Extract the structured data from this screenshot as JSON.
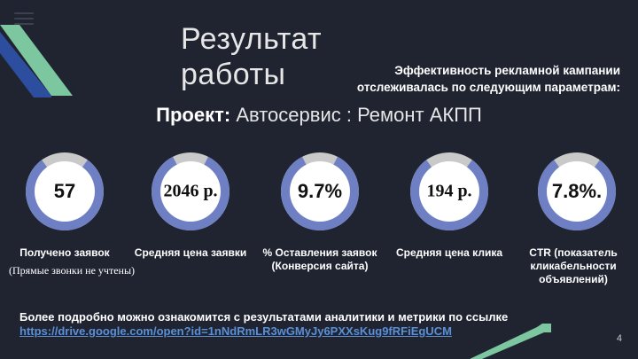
{
  "slide": {
    "title": "Результат работы",
    "subtitle_line1": "Эффективность рекламной кампании",
    "subtitle_line2": "отслеживалась по следующим параметрам:",
    "project_label": "Проект:",
    "project_value": "Автосервис : Ремонт АКПП",
    "page_number": "4",
    "colors": {
      "background": "#1f2430",
      "ring_blue": "#6f7fc3",
      "ring_gray": "#c9c9c9",
      "accent_green": "#7cc6a0",
      "accent_blue": "#2d4e9e",
      "link": "#5b8fd6"
    }
  },
  "metrics": [
    {
      "value": "57",
      "label": "Получено заявок",
      "note": "(Прямые звонки не учтены)",
      "fill": 0.8
    },
    {
      "value": "2046 р.",
      "label": "Средняя цена заявки",
      "fill": 0.85
    },
    {
      "value": "9.7%",
      "label": "% Оставления заявок (Конверсия сайта)",
      "fill": 0.85
    },
    {
      "value": "194 р.",
      "label": "Средняя цена клика",
      "fill": 0.8
    },
    {
      "value": "7.8%.",
      "label": "CTR (показатель кликабельности объявлений)",
      "fill": 0.8
    }
  ],
  "footer": {
    "text": "Более подробно можно ознакомится с результатами аналитики  и метрики по ссылке",
    "link": "https://drive.google.com/open?id=1nNdRmLR3wGMyJy6PXXsKug9fRFiEgUCM"
  },
  "icons": {
    "menu": "menu-icon",
    "corner_top": "chevron-stripe-decoration",
    "corner_bottom": "arrow-stripe-decoration"
  }
}
